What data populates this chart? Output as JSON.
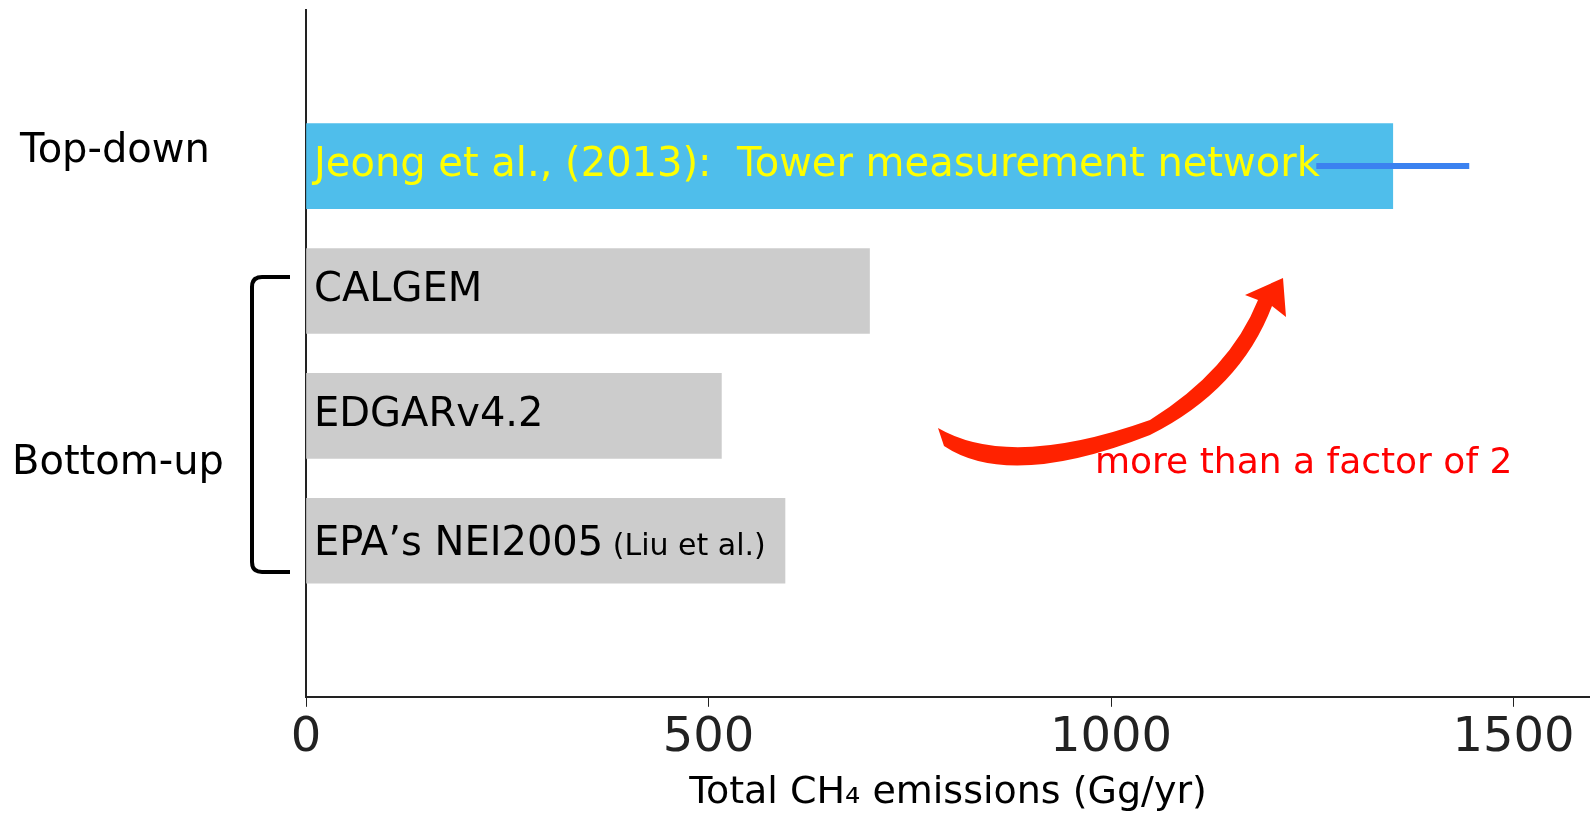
{
  "chart_data": {
    "type": "bar",
    "orientation": "horizontal",
    "xlabel": "Total CH₄ emissions (Gg/yr)",
    "categories": [
      "Jeong et al., (2013):  Tower measurement network",
      "CALGEM",
      "EDGARv4.2",
      "EPA’s NEI2005 (Liu et al.)"
    ],
    "values": [
      1350,
      700,
      516,
      595
    ],
    "colors": [
      "#4fbeeb",
      "#cccccc",
      "#cccccc",
      "#cccccc"
    ],
    "errors": [
      95,
      null,
      null,
      null
    ],
    "xlim": [
      0,
      1595
    ],
    "xticks": [
      0,
      500,
      1000,
      1500
    ],
    "tick_labels": "x",
    "grid": false,
    "legend": false,
    "annotations": [
      "Top-down",
      "Bottom-up",
      "more than a factor of 2"
    ]
  }
}
